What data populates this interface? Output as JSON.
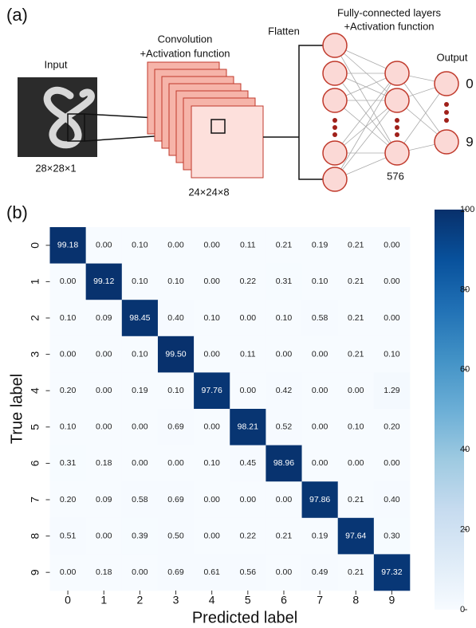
{
  "diagram": {
    "panel_a": "(a)",
    "input_label": "Input",
    "input_size": "28×28×1",
    "conv_line1": "Convolution",
    "conv_line2": "+Activation function",
    "conv_size": "24×24×8",
    "flatten_label": "Flatten",
    "fc_line1": "Fully-connected layers",
    "fc_line2": "+Activation function",
    "fc_size": "576",
    "output_label": "Output",
    "output_first": "0",
    "output_last": "9",
    "panel_b": "(b)"
  },
  "chart_data": {
    "type": "heatmap",
    "xlabel": "Predicted label",
    "ylabel": "True label",
    "x_categories": [
      "0",
      "1",
      "2",
      "3",
      "4",
      "5",
      "6",
      "7",
      "8",
      "9"
    ],
    "y_categories": [
      "0",
      "1",
      "2",
      "3",
      "4",
      "5",
      "6",
      "7",
      "8",
      "9"
    ],
    "values": [
      [
        99.18,
        0,
        0.1,
        0,
        0,
        0.11,
        0.21,
        0.19,
        0.21,
        0
      ],
      [
        0,
        99.12,
        0.1,
        0.1,
        0,
        0.22,
        0.31,
        0.1,
        0.21,
        0
      ],
      [
        0.1,
        0.09,
        98.45,
        0.4,
        0.1,
        0,
        0.1,
        0.58,
        0.21,
        0
      ],
      [
        0,
        0,
        0.1,
        99.5,
        0,
        0.11,
        0,
        0,
        0.21,
        0.1
      ],
      [
        0.2,
        0,
        0.19,
        0.1,
        97.76,
        0,
        0.42,
        0,
        0,
        1.29
      ],
      [
        0.1,
        0,
        0,
        0.69,
        0,
        98.21,
        0.52,
        0,
        0.1,
        0.2
      ],
      [
        0.31,
        0.18,
        0,
        0,
        0.1,
        0.45,
        98.96,
        0,
        0,
        0
      ],
      [
        0.2,
        0.09,
        0.58,
        0.69,
        0,
        0,
        0,
        97.86,
        0.21,
        0.4
      ],
      [
        0.51,
        0,
        0.39,
        0.5,
        0,
        0.22,
        0.21,
        0.19,
        97.64,
        0.3
      ],
      [
        0,
        0.18,
        0,
        0.69,
        0.61,
        0.56,
        0,
        0.49,
        0.21,
        97.32
      ]
    ],
    "value_labels": [
      [
        "99.18",
        "0.00",
        "0.10",
        "0.00",
        "0.00",
        "0.11",
        "0.21",
        "0.19",
        "0.21",
        "0.00"
      ],
      [
        "0.00",
        "99.12",
        "0.10",
        "0.10",
        "0.00",
        "0.22",
        "0.31",
        "0.10",
        "0.21",
        "0.00"
      ],
      [
        "0.10",
        "0.09",
        "98.45",
        "0.40",
        "0.10",
        "0.00",
        "0.10",
        "0.58",
        "0.21",
        "0.00"
      ],
      [
        "0.00",
        "0.00",
        "0.10",
        "99.50",
        "0.00",
        "0.11",
        "0.00",
        "0.00",
        "0.21",
        "0.10"
      ],
      [
        "0.20",
        "0.00",
        "0.19",
        "0.10",
        "97.76",
        "0.00",
        "0.42",
        "0.00",
        "0.00",
        "1.29"
      ],
      [
        "0.10",
        "0.00",
        "0.00",
        "0.69",
        "0.00",
        "98.21",
        "0.52",
        "0.00",
        "0.10",
        "0.20"
      ],
      [
        "0.31",
        "0.18",
        "0.00",
        "0.00",
        "0.10",
        "0.45",
        "98.96",
        "0.00",
        "0.00",
        "0.00"
      ],
      [
        "0.20",
        "0.09",
        "0.58",
        "0.69",
        "0.00",
        "0.00",
        "0.00",
        "97.86",
        "0.21",
        "0.40"
      ],
      [
        "0.51",
        "0.00",
        "0.39",
        "0.50",
        "0.00",
        "0.22",
        "0.21",
        "0.19",
        "97.64",
        "0.30"
      ],
      [
        "0.00",
        "0.18",
        "0.00",
        "0.69",
        "0.61",
        "0.56",
        "0.00",
        "0.49",
        "0.21",
        "97.32"
      ]
    ],
    "colorbar_lim": [
      0,
      100
    ],
    "colorbar_ticks": [
      0,
      20,
      40,
      60,
      80,
      100
    ],
    "colormap": [
      "#f7fbff",
      "#deebf7",
      "#c6dbef",
      "#9ecae1",
      "#6baed6",
      "#4292c6",
      "#2171b5",
      "#08519c",
      "#08306b"
    ]
  }
}
